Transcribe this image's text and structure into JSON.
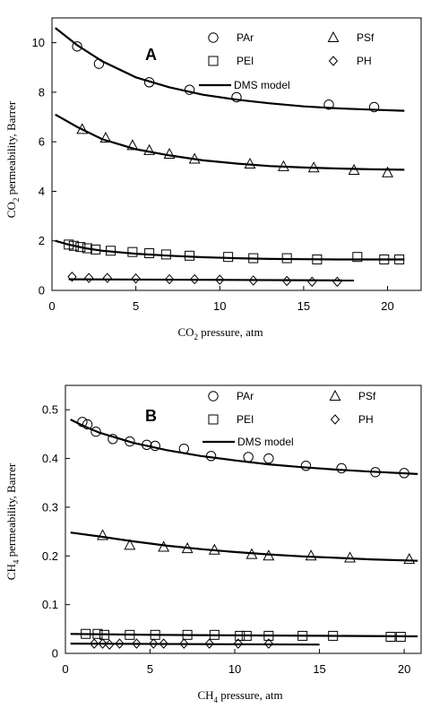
{
  "chart_data": [
    {
      "type": "scatter",
      "panel_label": "A",
      "xlabel": "CO2 pressure, atm",
      "ylabel": "CO2 permeability, Barrer",
      "xlim": [
        0,
        22
      ],
      "ylim": [
        0,
        11
      ],
      "xticks": [
        0,
        5,
        10,
        15,
        20
      ],
      "yticks": [
        0,
        2,
        4,
        6,
        8,
        10
      ],
      "grid": false,
      "legend_position": "top-right",
      "model_label": "DMS model",
      "series": [
        {
          "name": "PAr",
          "marker": "circle",
          "points": [
            [
              1.5,
              9.85
            ],
            [
              2.8,
              9.15
            ],
            [
              5.8,
              8.4
            ],
            [
              8.2,
              8.1
            ],
            [
              11.0,
              7.8
            ],
            [
              16.5,
              7.5
            ],
            [
              19.2,
              7.4
            ]
          ],
          "model": [
            [
              0.2,
              10.6
            ],
            [
              1.5,
              9.9
            ],
            [
              3,
              9.25
            ],
            [
              5,
              8.6
            ],
            [
              7,
              8.2
            ],
            [
              9,
              7.9
            ],
            [
              11,
              7.7
            ],
            [
              13,
              7.55
            ],
            [
              15,
              7.43
            ],
            [
              17,
              7.35
            ],
            [
              19,
              7.3
            ],
            [
              21,
              7.25
            ]
          ]
        },
        {
          "name": "PSf",
          "marker": "triangle",
          "points": [
            [
              1.8,
              6.5
            ],
            [
              3.2,
              6.15
            ],
            [
              4.8,
              5.85
            ],
            [
              5.8,
              5.65
            ],
            [
              7.0,
              5.5
            ],
            [
              8.5,
              5.3
            ],
            [
              11.8,
              5.1
            ],
            [
              13.8,
              5.0
            ],
            [
              15.6,
              4.95
            ],
            [
              18.0,
              4.85
            ],
            [
              20.0,
              4.75
            ]
          ],
          "model": [
            [
              0.2,
              7.1
            ],
            [
              1.5,
              6.6
            ],
            [
              3,
              6.1
            ],
            [
              5,
              5.7
            ],
            [
              7,
              5.45
            ],
            [
              9,
              5.25
            ],
            [
              11,
              5.12
            ],
            [
              13,
              5.02
            ],
            [
              15,
              4.96
            ],
            [
              17,
              4.92
            ],
            [
              19,
              4.89
            ],
            [
              21,
              4.87
            ]
          ]
        },
        {
          "name": "PEI",
          "marker": "square",
          "points": [
            [
              1.0,
              1.85
            ],
            [
              1.3,
              1.8
            ],
            [
              1.7,
              1.75
            ],
            [
              2.1,
              1.7
            ],
            [
              2.6,
              1.65
            ],
            [
              3.5,
              1.6
            ],
            [
              4.8,
              1.55
            ],
            [
              5.8,
              1.5
            ],
            [
              6.8,
              1.45
            ],
            [
              8.2,
              1.4
            ],
            [
              10.5,
              1.35
            ],
            [
              12.0,
              1.3
            ],
            [
              14.0,
              1.3
            ],
            [
              15.8,
              1.25
            ],
            [
              18.2,
              1.35
            ],
            [
              19.8,
              1.25
            ],
            [
              20.7,
              1.25
            ]
          ],
          "model": [
            [
              0.2,
              2.0
            ],
            [
              1,
              1.85
            ],
            [
              2,
              1.7
            ],
            [
              3,
              1.6
            ],
            [
              5,
              1.48
            ],
            [
              7,
              1.4
            ],
            [
              9,
              1.34
            ],
            [
              11,
              1.3
            ],
            [
              13,
              1.27
            ],
            [
              15,
              1.26
            ],
            [
              17,
              1.25
            ],
            [
              19,
              1.25
            ],
            [
              21,
              1.25
            ]
          ]
        },
        {
          "name": "PH",
          "marker": "diamond",
          "points": [
            [
              1.2,
              0.55
            ],
            [
              2.2,
              0.5
            ],
            [
              3.3,
              0.5
            ],
            [
              5.0,
              0.48
            ],
            [
              7.0,
              0.45
            ],
            [
              8.5,
              0.45
            ],
            [
              10.0,
              0.43
            ],
            [
              12.0,
              0.4
            ],
            [
              14.0,
              0.38
            ],
            [
              15.5,
              0.35
            ],
            [
              17.0,
              0.35
            ]
          ],
          "model": [
            [
              1.0,
              0.45
            ],
            [
              18.0,
              0.4
            ]
          ]
        }
      ]
    },
    {
      "type": "scatter",
      "panel_label": "B",
      "xlabel": "CH4 pressure, atm",
      "ylabel": "CH4 permeability, Barrer",
      "xlim": [
        0,
        21
      ],
      "ylim": [
        0,
        0.55
      ],
      "xticks": [
        0,
        5,
        10,
        15,
        20
      ],
      "yticks": [
        0,
        0.1,
        0.2,
        0.3,
        0.4,
        0.5
      ],
      "ytick_labels": [
        "0",
        "0.1",
        "0.2",
        "0.3",
        "0.4",
        "0.5"
      ],
      "grid": false,
      "legend_position": "top-right",
      "model_label": "DMS model",
      "series": [
        {
          "name": "PAr",
          "marker": "circle",
          "points": [
            [
              1.0,
              0.475
            ],
            [
              1.3,
              0.47
            ],
            [
              1.8,
              0.455
            ],
            [
              2.8,
              0.44
            ],
            [
              3.8,
              0.435
            ],
            [
              4.8,
              0.428
            ],
            [
              5.3,
              0.426
            ],
            [
              7.0,
              0.42
            ],
            [
              8.6,
              0.405
            ],
            [
              10.8,
              0.403
            ],
            [
              12.0,
              0.4
            ],
            [
              14.2,
              0.385
            ],
            [
              16.3,
              0.38
            ],
            [
              18.3,
              0.372
            ],
            [
              20.0,
              0.37
            ]
          ],
          "model": [
            [
              0.3,
              0.48
            ],
            [
              1,
              0.468
            ],
            [
              2,
              0.453
            ],
            [
              4,
              0.432
            ],
            [
              6,
              0.417
            ],
            [
              8,
              0.405
            ],
            [
              10,
              0.396
            ],
            [
              12,
              0.388
            ],
            [
              14,
              0.382
            ],
            [
              16,
              0.377
            ],
            [
              18,
              0.373
            ],
            [
              20.8,
              0.368
            ]
          ]
        },
        {
          "name": "PSf",
          "marker": "triangle",
          "points": [
            [
              2.2,
              0.242
            ],
            [
              3.8,
              0.222
            ],
            [
              5.8,
              0.218
            ],
            [
              7.2,
              0.215
            ],
            [
              8.8,
              0.212
            ],
            [
              11.0,
              0.203
            ],
            [
              12.0,
              0.2
            ],
            [
              14.5,
              0.2
            ],
            [
              16.8,
              0.196
            ],
            [
              20.3,
              0.193
            ]
          ],
          "model": [
            [
              0.3,
              0.248
            ],
            [
              2,
              0.24
            ],
            [
              4,
              0.23
            ],
            [
              6,
              0.221
            ],
            [
              8,
              0.214
            ],
            [
              10,
              0.208
            ],
            [
              12,
              0.203
            ],
            [
              14,
              0.199
            ],
            [
              16,
              0.196
            ],
            [
              18,
              0.193
            ],
            [
              20.8,
              0.19
            ]
          ]
        },
        {
          "name": "PEI",
          "marker": "square",
          "points": [
            [
              1.2,
              0.04
            ],
            [
              1.9,
              0.04
            ],
            [
              2.3,
              0.038
            ],
            [
              3.8,
              0.038
            ],
            [
              5.3,
              0.038
            ],
            [
              7.2,
              0.038
            ],
            [
              8.8,
              0.038
            ],
            [
              10.3,
              0.036
            ],
            [
              10.7,
              0.036
            ],
            [
              12.0,
              0.036
            ],
            [
              14.0,
              0.036
            ],
            [
              15.8,
              0.036
            ],
            [
              19.2,
              0.034
            ],
            [
              19.8,
              0.034
            ]
          ],
          "model": [
            [
              0.3,
              0.04
            ],
            [
              5,
              0.038
            ],
            [
              10,
              0.037
            ],
            [
              15,
              0.036
            ],
            [
              20.8,
              0.035
            ]
          ]
        },
        {
          "name": "PH",
          "marker": "diamond",
          "points": [
            [
              1.7,
              0.02
            ],
            [
              2.2,
              0.02
            ],
            [
              2.6,
              0.018
            ],
            [
              3.2,
              0.02
            ],
            [
              4.2,
              0.02
            ],
            [
              5.2,
              0.02
            ],
            [
              5.8,
              0.02
            ],
            [
              7.0,
              0.02
            ],
            [
              8.5,
              0.02
            ],
            [
              10.2,
              0.02
            ],
            [
              12.0,
              0.02
            ]
          ],
          "model": [
            [
              0.3,
              0.02
            ],
            [
              15.0,
              0.018
            ]
          ]
        }
      ]
    }
  ]
}
